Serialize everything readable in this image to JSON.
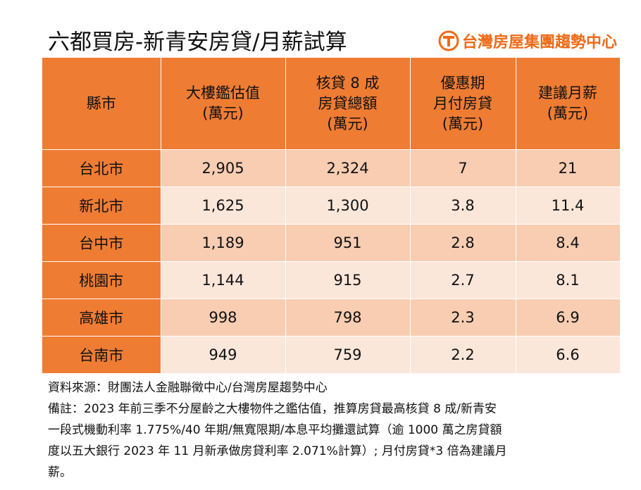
{
  "header": {
    "title": "六都買房-新青安房貸/月薪試算",
    "brand_name": "台灣房屋集團趨勢中心",
    "brand_color": "#ee6a17",
    "brand_logo_icon": "taiwan-realty-logo"
  },
  "table": {
    "header_color": "#ef7c33",
    "row_colors": [
      "#f8cdb2",
      "#fbe6da"
    ],
    "columns": [
      [
        "縣市"
      ],
      [
        "大樓鑑估值",
        "(萬元)"
      ],
      [
        "核貸 8 成",
        "房貸總額",
        "(萬元)"
      ],
      [
        "優惠期",
        "月付房貸",
        "(萬元)"
      ],
      [
        "建議月薪",
        "(萬元)"
      ]
    ],
    "rows": [
      [
        "台北市",
        "2,905",
        "2,324",
        "7",
        "21"
      ],
      [
        "新北市",
        "1,625",
        "1,300",
        "3.8",
        "11.4"
      ],
      [
        "台中市",
        "1,189",
        "951",
        "2.8",
        "8.4"
      ],
      [
        "桃園市",
        "1,144",
        "915",
        "2.7",
        "8.1"
      ],
      [
        "高雄市",
        "998",
        "798",
        "2.3",
        "6.9"
      ],
      [
        "台南市",
        "949",
        "759",
        "2.2",
        "6.6"
      ]
    ]
  },
  "notes": {
    "source": "資料來源：財團法人金融聯徵中心/台灣房屋趨勢中心",
    "remark_lines": [
      "備註：2023 年前三季不分屋齡之大樓物件之鑑估值，推算房貸最高核貸 8 成/新青安",
      "一段式機動利率 1.775%/40 年期/無寬限期/本息平均攤還試算（逾 1000 萬之房貸額",
      "度以五大銀行 2023 年 11 月新承做房貸利率 2.071%計算）; 月付房貸*3 倍為建議月",
      "薪。"
    ]
  }
}
